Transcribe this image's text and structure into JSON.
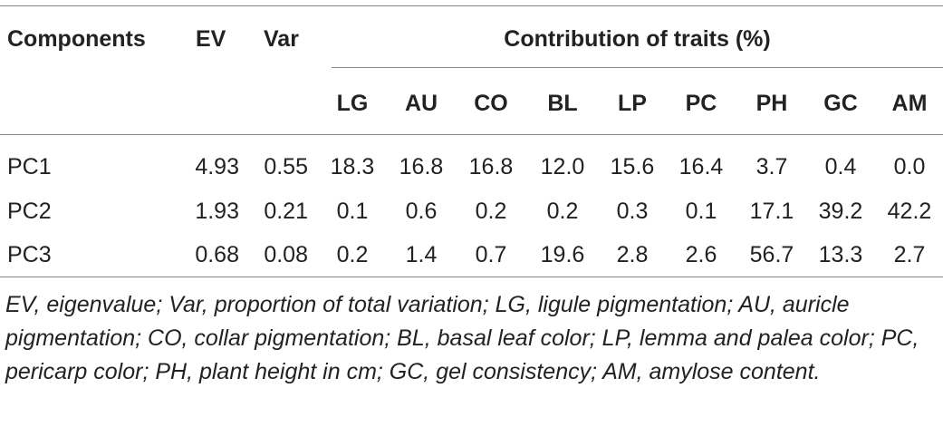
{
  "table": {
    "header_top": {
      "components": "Components",
      "ev": "EV",
      "var": "Var",
      "contribution": "Contribution of traits (%)"
    },
    "trait_headers": [
      "LG",
      "AU",
      "CO",
      "BL",
      "LP",
      "PC",
      "PH",
      "GC",
      "AM"
    ],
    "rows": [
      {
        "component": "PC1",
        "ev": "4.93",
        "var": "0.55",
        "traits": [
          "18.3",
          "16.8",
          "16.8",
          "12.0",
          "15.6",
          "16.4",
          "3.7",
          "0.4",
          "0.0"
        ]
      },
      {
        "component": "PC2",
        "ev": "1.93",
        "var": "0.21",
        "traits": [
          "0.1",
          "0.6",
          "0.2",
          "0.2",
          "0.3",
          "0.1",
          "17.1",
          "39.2",
          "42.2"
        ]
      },
      {
        "component": "PC3",
        "ev": "0.68",
        "var": "0.08",
        "traits": [
          "0.2",
          "1.4",
          "0.7",
          "19.6",
          "2.8",
          "2.6",
          "56.7",
          "13.3",
          "2.7"
        ]
      }
    ],
    "footnote": "EV, eigenvalue; Var, proportion of total variation; LG, ligule pigmentation; AU, auricle pigmentation; CO, collar pigmentation; BL, basal leaf color; LP, lemma and palea color; PC, pericarp color; PH, plant height in cm; GC, gel consistency; AM, amylose content."
  }
}
